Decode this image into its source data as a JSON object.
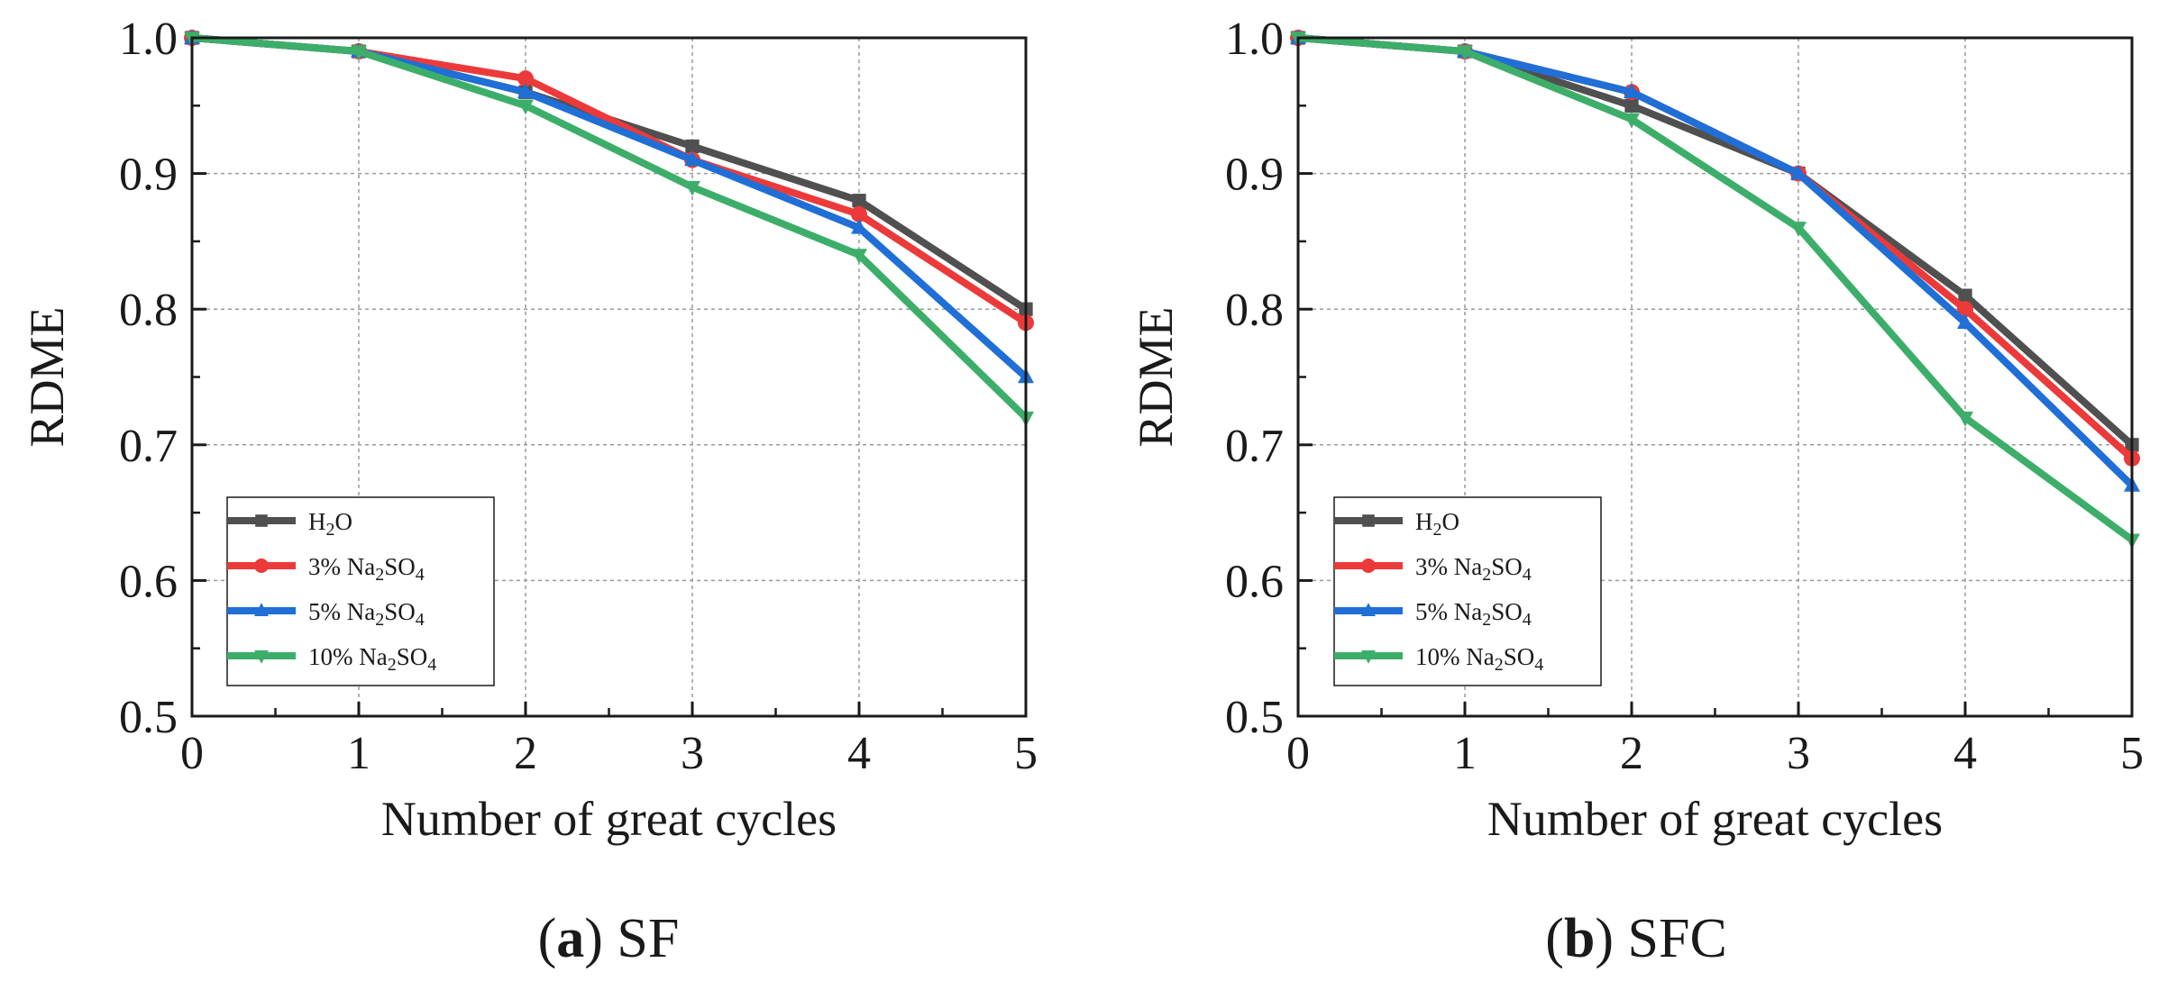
{
  "chart_data": [
    {
      "type": "line",
      "title": "",
      "xlabel": "Number of great cycles",
      "ylabel": "RDME",
      "xlim": [
        0,
        5
      ],
      "ylim": [
        0.5,
        1.0
      ],
      "xticks": [
        "0",
        "1",
        "2",
        "3",
        "4",
        "5"
      ],
      "yticks": [
        "0.5",
        "0.6",
        "0.7",
        "0.8",
        "0.9",
        "1.0"
      ],
      "grid": true,
      "legend_position": "bottom-left",
      "caption": {
        "letter": "a",
        "text": "SF"
      },
      "x": [
        0,
        1,
        2,
        3,
        4,
        5
      ],
      "series": [
        {
          "name": "H2O",
          "label_main": "H",
          "label_sub": "2",
          "label_rest": "O",
          "marker": "square",
          "color": "#505050",
          "values": [
            1.0,
            0.99,
            0.96,
            0.92,
            0.88,
            0.8
          ]
        },
        {
          "name": "3% Na2SO4",
          "label_main": "3% Na",
          "label_sub": "2",
          "label_rest": "SO",
          "label_sub2": "4",
          "marker": "circle",
          "color": "#ec3a3a",
          "values": [
            1.0,
            0.99,
            0.97,
            0.91,
            0.87,
            0.79
          ]
        },
        {
          "name": "5% Na2SO4",
          "label_main": "5% Na",
          "label_sub": "2",
          "label_rest": "SO",
          "label_sub2": "4",
          "marker": "triangle-up",
          "color": "#1f6fd6",
          "values": [
            1.0,
            0.99,
            0.96,
            0.91,
            0.86,
            0.75
          ]
        },
        {
          "name": "10% Na2SO4",
          "label_main": "10% Na",
          "label_sub": "2",
          "label_rest": "SO",
          "label_sub2": "4",
          "marker": "triangle-down",
          "color": "#3dae6a",
          "values": [
            1.0,
            0.99,
            0.95,
            0.89,
            0.84,
            0.72
          ]
        }
      ]
    },
    {
      "type": "line",
      "title": "",
      "xlabel": "Number of great cycles",
      "ylabel": "RDME",
      "xlim": [
        0,
        5
      ],
      "ylim": [
        0.5,
        1.0
      ],
      "xticks": [
        "0",
        "1",
        "2",
        "3",
        "4",
        "5"
      ],
      "yticks": [
        "0.5",
        "0.6",
        "0.7",
        "0.8",
        "0.9",
        "1.0"
      ],
      "grid": true,
      "legend_position": "bottom-left",
      "caption": {
        "letter": "b",
        "text": "SFC"
      },
      "x": [
        0,
        1,
        2,
        3,
        4,
        5
      ],
      "series": [
        {
          "name": "H2O",
          "label_main": "H",
          "label_sub": "2",
          "label_rest": "O",
          "marker": "square",
          "color": "#505050",
          "values": [
            1.0,
            0.99,
            0.95,
            0.9,
            0.81,
            0.7
          ]
        },
        {
          "name": "3% Na2SO4",
          "label_main": "3% Na",
          "label_sub": "2",
          "label_rest": "SO",
          "label_sub2": "4",
          "marker": "circle",
          "color": "#ec3a3a",
          "values": [
            1.0,
            0.99,
            0.96,
            0.9,
            0.8,
            0.69
          ]
        },
        {
          "name": "5% Na2SO4",
          "label_main": "5% Na",
          "label_sub": "2",
          "label_rest": "SO",
          "label_sub2": "4",
          "marker": "triangle-up",
          "color": "#1f6fd6",
          "values": [
            1.0,
            0.99,
            0.96,
            0.9,
            0.79,
            0.67
          ]
        },
        {
          "name": "10% Na2SO4",
          "label_main": "10% Na",
          "label_sub": "2",
          "label_rest": "SO",
          "label_sub2": "4",
          "marker": "triangle-down",
          "color": "#3dae6a",
          "values": [
            1.0,
            0.99,
            0.94,
            0.86,
            0.72,
            0.63
          ]
        }
      ]
    }
  ]
}
